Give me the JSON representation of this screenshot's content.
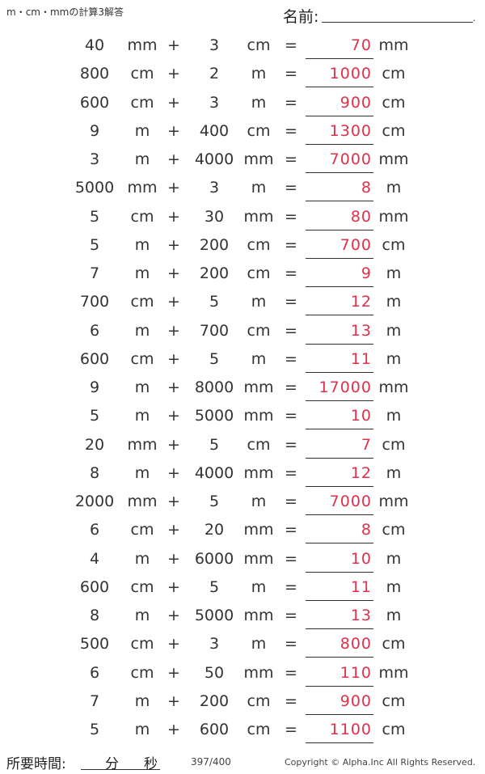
{
  "header": {
    "title": "m・cm・mmの計算3解答",
    "name_label": "名前:",
    "name_end_mark": "."
  },
  "problems": [
    {
      "a": "40",
      "ua": "mm",
      "op": "+",
      "b": "3",
      "ub": "cm",
      "eq": "=",
      "ans": "70",
      "uans": "mm"
    },
    {
      "a": "800",
      "ua": "cm",
      "op": "+",
      "b": "2",
      "ub": "m",
      "eq": "=",
      "ans": "1000",
      "uans": "cm"
    },
    {
      "a": "600",
      "ua": "cm",
      "op": "+",
      "b": "3",
      "ub": "m",
      "eq": "=",
      "ans": "900",
      "uans": "cm"
    },
    {
      "a": "9",
      "ua": "m",
      "op": "+",
      "b": "400",
      "ub": "cm",
      "eq": "=",
      "ans": "1300",
      "uans": "cm"
    },
    {
      "a": "3",
      "ua": "m",
      "op": "+",
      "b": "4000",
      "ub": "mm",
      "eq": "=",
      "ans": "7000",
      "uans": "mm"
    },
    {
      "a": "5000",
      "ua": "mm",
      "op": "+",
      "b": "3",
      "ub": "m",
      "eq": "=",
      "ans": "8",
      "uans": "m"
    },
    {
      "a": "5",
      "ua": "cm",
      "op": "+",
      "b": "30",
      "ub": "mm",
      "eq": "=",
      "ans": "80",
      "uans": "mm"
    },
    {
      "a": "5",
      "ua": "m",
      "op": "+",
      "b": "200",
      "ub": "cm",
      "eq": "=",
      "ans": "700",
      "uans": "cm"
    },
    {
      "a": "7",
      "ua": "m",
      "op": "+",
      "b": "200",
      "ub": "cm",
      "eq": "=",
      "ans": "9",
      "uans": "m"
    },
    {
      "a": "700",
      "ua": "cm",
      "op": "+",
      "b": "5",
      "ub": "m",
      "eq": "=",
      "ans": "12",
      "uans": "m"
    },
    {
      "a": "6",
      "ua": "m",
      "op": "+",
      "b": "700",
      "ub": "cm",
      "eq": "=",
      "ans": "13",
      "uans": "m"
    },
    {
      "a": "600",
      "ua": "cm",
      "op": "+",
      "b": "5",
      "ub": "m",
      "eq": "=",
      "ans": "11",
      "uans": "m"
    },
    {
      "a": "9",
      "ua": "m",
      "op": "+",
      "b": "8000",
      "ub": "mm",
      "eq": "=",
      "ans": "17000",
      "uans": "mm"
    },
    {
      "a": "5",
      "ua": "m",
      "op": "+",
      "b": "5000",
      "ub": "mm",
      "eq": "=",
      "ans": "10",
      "uans": "m"
    },
    {
      "a": "20",
      "ua": "mm",
      "op": "+",
      "b": "5",
      "ub": "cm",
      "eq": "=",
      "ans": "7",
      "uans": "cm"
    },
    {
      "a": "8",
      "ua": "m",
      "op": "+",
      "b": "4000",
      "ub": "mm",
      "eq": "=",
      "ans": "12",
      "uans": "m"
    },
    {
      "a": "2000",
      "ua": "mm",
      "op": "+",
      "b": "5",
      "ub": "m",
      "eq": "=",
      "ans": "7000",
      "uans": "mm"
    },
    {
      "a": "6",
      "ua": "cm",
      "op": "+",
      "b": "20",
      "ub": "mm",
      "eq": "=",
      "ans": "8",
      "uans": "cm"
    },
    {
      "a": "4",
      "ua": "m",
      "op": "+",
      "b": "6000",
      "ub": "mm",
      "eq": "=",
      "ans": "10",
      "uans": "m"
    },
    {
      "a": "600",
      "ua": "cm",
      "op": "+",
      "b": "5",
      "ub": "m",
      "eq": "=",
      "ans": "11",
      "uans": "m"
    },
    {
      "a": "8",
      "ua": "m",
      "op": "+",
      "b": "5000",
      "ub": "mm",
      "eq": "=",
      "ans": "13",
      "uans": "m"
    },
    {
      "a": "500",
      "ua": "cm",
      "op": "+",
      "b": "3",
      "ub": "m",
      "eq": "=",
      "ans": "800",
      "uans": "cm"
    },
    {
      "a": "6",
      "ua": "cm",
      "op": "+",
      "b": "50",
      "ub": "mm",
      "eq": "=",
      "ans": "110",
      "uans": "mm"
    },
    {
      "a": "7",
      "ua": "m",
      "op": "+",
      "b": "200",
      "ub": "cm",
      "eq": "=",
      "ans": "900",
      "uans": "cm"
    },
    {
      "a": "5",
      "ua": "m",
      "op": "+",
      "b": "600",
      "ub": "cm",
      "eq": "=",
      "ans": "1100",
      "uans": "cm"
    }
  ],
  "footer": {
    "time_label": "所要時間:",
    "minutes_label": "分",
    "seconds_label": "秒",
    "page_number": "397/400",
    "copyright": "Copyright © Alpha.Inc All Rights Reserved."
  },
  "colors": {
    "answer": "#e0304a",
    "text": "#333333"
  }
}
